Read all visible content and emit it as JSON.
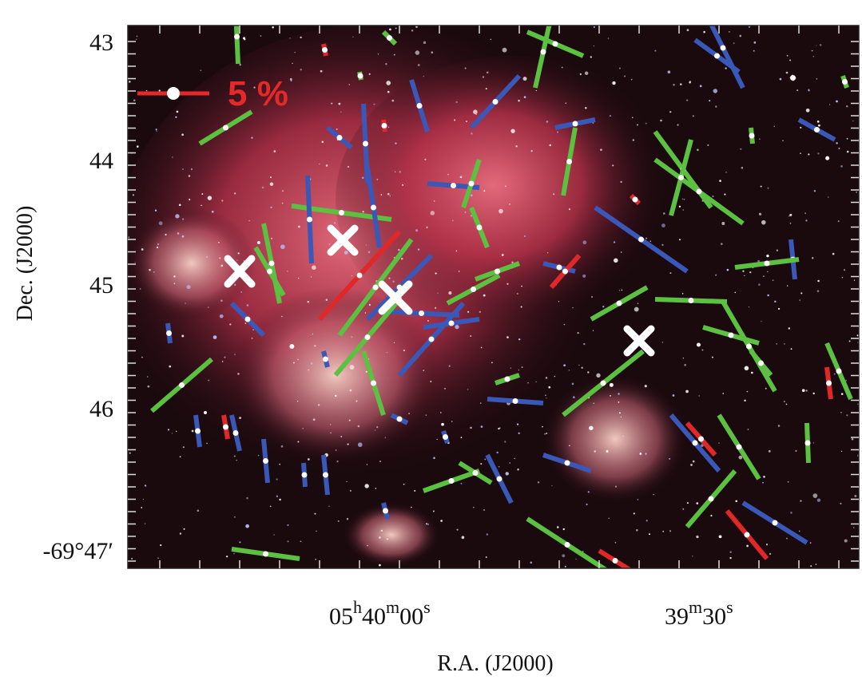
{
  "figure": {
    "y_axis": {
      "label": "Dec. (J2000)",
      "ticks": [
        "43",
        "44",
        "45",
        "46",
        "-69°47′"
      ]
    },
    "x_axis": {
      "label": "R.A. (J2000)",
      "ticks": [
        {
          "parts": [
            "05",
            "h",
            "40",
            "m",
            "00",
            "s"
          ]
        },
        {
          "parts": [
            "39",
            "m",
            "30",
            "s"
          ]
        }
      ]
    },
    "scale_label": "5 %"
  }
}
